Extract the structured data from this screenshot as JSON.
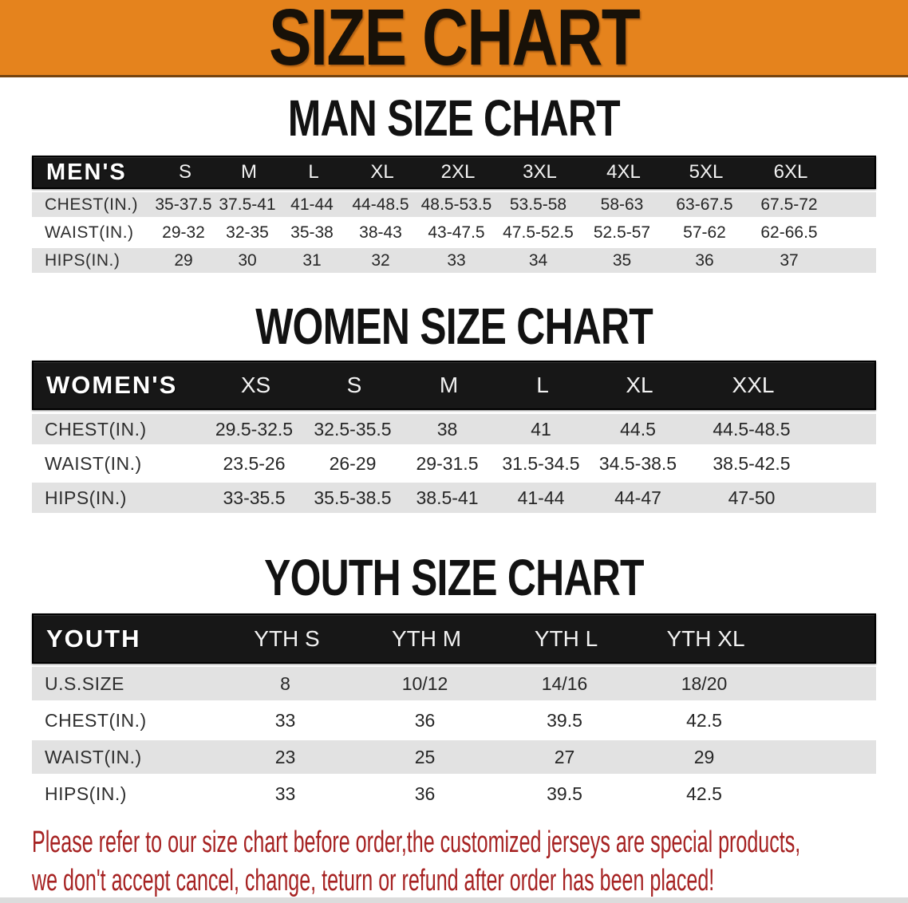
{
  "banner": {
    "title": "SIZE CHART"
  },
  "colors": {
    "banner_bg": "#e5831d",
    "header_bar": "#171717",
    "row_shade": "#e2e2e2",
    "footer_text": "#a62222"
  },
  "sections": [
    {
      "heading": "MAN SIZE CHART",
      "table": {
        "header": [
          "MEN'S",
          "S",
          "M",
          "L",
          "XL",
          "2XL",
          "3XL",
          "4XL",
          "5XL",
          "6XL"
        ],
        "rows": [
          {
            "label": "CHEST(IN.)",
            "values": [
              "35-37.5",
              "37.5-41",
              "41-44",
              "44-48.5",
              "48.5-53.5",
              "53.5-58",
              "58-63",
              "63-67.5",
              "67.5-72"
            ]
          },
          {
            "label": "WAIST(IN.)",
            "values": [
              "29-32",
              "32-35",
              "35-38",
              "38-43",
              "43-47.5",
              "47.5-52.5",
              "52.5-57",
              "57-62",
              "62-66.5"
            ]
          },
          {
            "label": "HIPS(IN.)",
            "values": [
              "29",
              "30",
              "31",
              "32",
              "33",
              "34",
              "35",
              "36",
              "37"
            ]
          }
        ]
      }
    },
    {
      "heading": "WOMEN SIZE CHART",
      "table": {
        "header": [
          "WOMEN'S",
          "XS",
          "S",
          "M",
          "L",
          "XL",
          "XXL"
        ],
        "rows": [
          {
            "label": "CHEST(IN.)",
            "values": [
              "29.5-32.5",
              "32.5-35.5",
              "38",
              "41",
              "44.5",
              "44.5-48.5"
            ]
          },
          {
            "label": "WAIST(IN.)",
            "values": [
              "23.5-26",
              "26-29",
              "29-31.5",
              "31.5-34.5",
              "34.5-38.5",
              "38.5-42.5"
            ]
          },
          {
            "label": "HIPS(IN.)",
            "values": [
              "33-35.5",
              "35.5-38.5",
              "38.5-41",
              "41-44",
              "44-47",
              "47-50"
            ]
          }
        ]
      }
    },
    {
      "heading": "YOUTH SIZE CHART",
      "table": {
        "header": [
          "YOUTH",
          "YTH S",
          "YTH M",
          "YTH L",
          "YTH XL"
        ],
        "rows": [
          {
            "label": "U.S.SIZE",
            "values": [
              "8",
              "10/12",
              "14/16",
              "18/20"
            ]
          },
          {
            "label": "CHEST(IN.)",
            "values": [
              "33",
              "36",
              "39.5",
              "42.5"
            ]
          },
          {
            "label": "WAIST(IN.)",
            "values": [
              "23",
              "25",
              "27",
              "29"
            ]
          },
          {
            "label": "HIPS(IN.)",
            "values": [
              "33",
              "36",
              "39.5",
              "42.5"
            ]
          }
        ]
      }
    }
  ],
  "footer": {
    "line1": "Please refer to our size chart before order,the customized jerseys are special products,",
    "line2": "we don't accept cancel, change, teturn or refund after order has been placed!"
  }
}
